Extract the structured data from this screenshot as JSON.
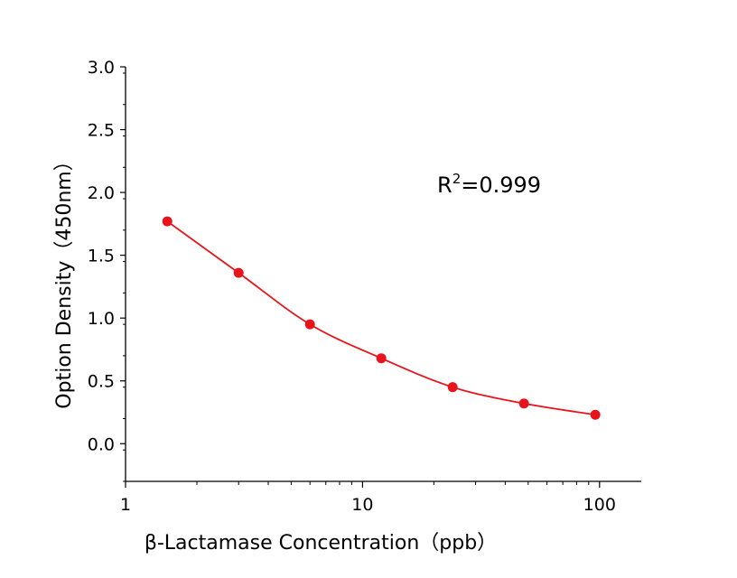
{
  "chart_data": {
    "type": "scatter",
    "xscale": "log",
    "xlabel": "β-Lactamase  Concentration（ppb）",
    "ylabel": "Option Density（450nm）",
    "xlim": [
      1,
      150
    ],
    "ylim": [
      -0.3,
      3.0
    ],
    "x_ticks": [
      1,
      10,
      100
    ],
    "x_tick_labels": [
      "1",
      "10",
      "100"
    ],
    "y_ticks": [
      0.0,
      0.5,
      1.0,
      1.5,
      2.0,
      2.5,
      3.0
    ],
    "y_tick_labels": [
      "0.0",
      "0.5",
      "1.0",
      "1.5",
      "2.0",
      "2.5",
      "3.0"
    ],
    "annotation": {
      "base": "R",
      "sup": "2",
      "rest": "=0.999"
    },
    "series": [
      {
        "x": [
          1.5,
          3,
          6,
          12,
          24,
          48,
          96
        ],
        "y": [
          1.77,
          1.36,
          0.95,
          0.68,
          0.45,
          0.32,
          0.23
        ],
        "color": "#e8141b",
        "fit_line": true
      }
    ]
  }
}
